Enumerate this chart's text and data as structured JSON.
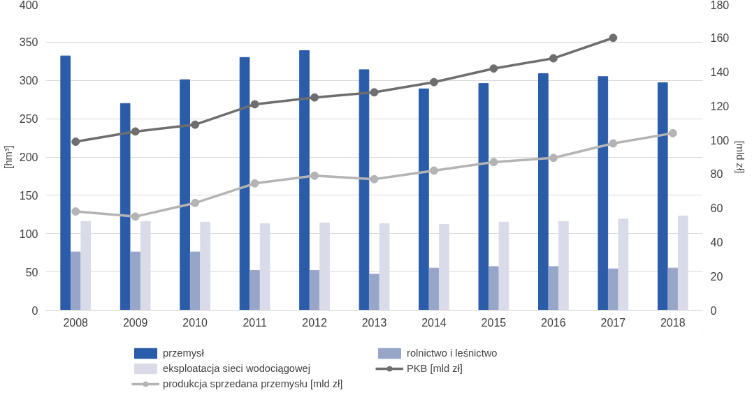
{
  "chart_data": {
    "type": "bar",
    "categories": [
      "2008",
      "2009",
      "2010",
      "2011",
      "2012",
      "2013",
      "2014",
      "2015",
      "2016",
      "2017",
      "2018"
    ],
    "ylabel": "[hm³]",
    "y2label": "[mld zł]",
    "ylim": [
      0,
      400
    ],
    "yticks": [
      0,
      50,
      100,
      150,
      200,
      250,
      300,
      350,
      400
    ],
    "y2lim": [
      0,
      180
    ],
    "y2ticks": [
      0,
      20,
      40,
      60,
      80,
      100,
      120,
      140,
      160,
      180
    ],
    "grid": "y",
    "legend": "bottom",
    "series": [
      {
        "name": "przemysł",
        "color": "#2a5caa",
        "values": [
          332,
          270,
          301,
          330,
          339,
          314,
          289,
          296,
          309,
          305,
          297
        ]
      },
      {
        "name": "rolnictwo i leśnictwo",
        "color": "#97a6c8",
        "values": [
          76,
          76,
          76,
          52,
          52,
          47,
          55,
          57,
          57,
          54,
          55
        ]
      },
      {
        "name": "eksploatacja sieci wodociągowej",
        "color": "#d9dce8",
        "values": [
          116,
          116,
          115,
          113,
          114,
          113,
          112,
          115,
          116,
          119,
          123
        ]
      },
      {
        "name": "PKB [mld zł]",
        "type": "line",
        "axis": "y2",
        "marker": "circle",
        "color": "#6e6e6e",
        "values": [
          99,
          105,
          109,
          121,
          125,
          128,
          134,
          142,
          148,
          160,
          null
        ]
      },
      {
        "name": "produkcja sprzedana przemysłu [mld zł]",
        "type": "line",
        "axis": "y2",
        "marker": "circle",
        "color": "#b4b4b4",
        "values": [
          58,
          55,
          63,
          74.5,
          79,
          77,
          82,
          87,
          89.5,
          98,
          104
        ]
      }
    ]
  }
}
